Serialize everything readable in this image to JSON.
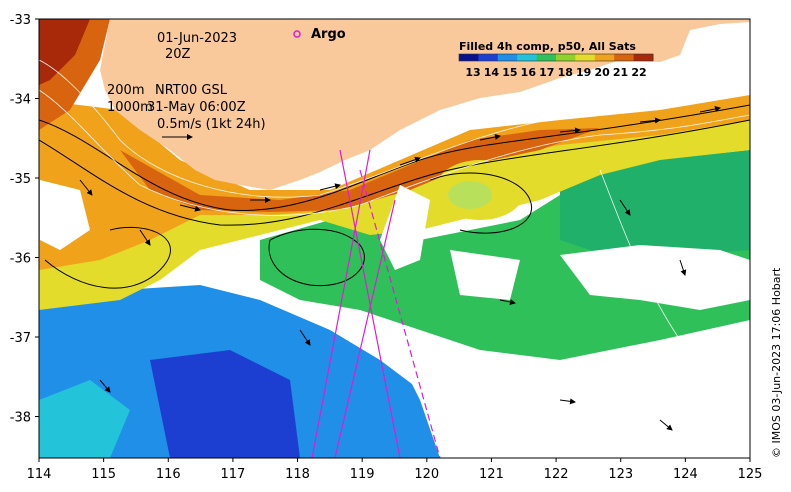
{
  "map": {
    "date": "01-Jun-2023",
    "time": "20Z",
    "depth_line1": "200m",
    "depth_line2": "1000m",
    "model_label": "NRT00 GSL",
    "model_time": "31-May 06:00Z",
    "scale_arrow_label": "0.5m/s (1kt 24h)",
    "argo_label": "Argo",
    "credit": "© IMOS 03-Jun-2023 17:06 Hobart"
  },
  "colorbar": {
    "title": "Filled 4h comp, p50, All Sats",
    "ticks": [
      "13",
      "14",
      "15",
      "16",
      "17",
      "18",
      "19",
      "20",
      "21",
      "22"
    ],
    "colors": [
      "#0a0f8c",
      "#1d3fd1",
      "#1f8fe8",
      "#23c4d9",
      "#2fc05a",
      "#8fd22a",
      "#e3dc2a",
      "#f0a21a",
      "#d8640f",
      "#a8280a"
    ]
  },
  "axes": {
    "x_ticks": [
      "114",
      "115",
      "116",
      "117",
      "118",
      "119",
      "120",
      "121",
      "122",
      "123",
      "124",
      "125"
    ],
    "y_ticks": [
      "-33",
      "-34",
      "-35",
      "-36",
      "-37",
      "-38"
    ]
  },
  "colors": {
    "land": "#f9c89b",
    "argo_marker": "#e21ad6"
  }
}
